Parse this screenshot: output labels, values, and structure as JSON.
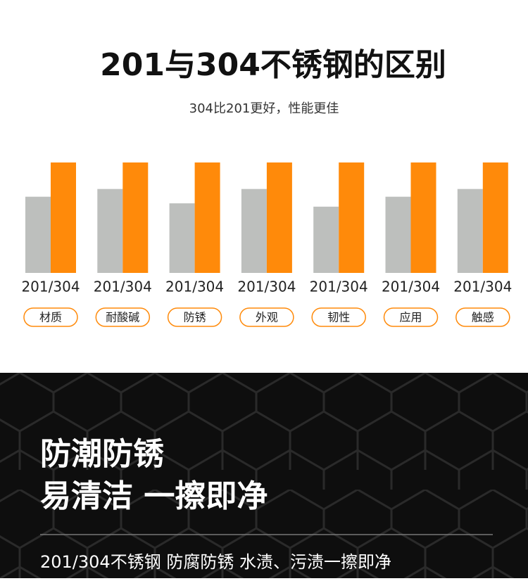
{
  "chart_data": {
    "type": "bar",
    "title": "201与304不锈钢的区别",
    "subtitle": "304比201更好，性能更佳",
    "categories": [
      "材质",
      "耐酸碱",
      "防锈",
      "外观",
      "韧性",
      "应用",
      "触感"
    ],
    "group_labels": [
      "201/304",
      "201/304",
      "201/304",
      "201/304",
      "201/304",
      "201/304",
      "201/304"
    ],
    "series": [
      {
        "color": "#bdbfbd",
        "values": [
          69,
          76,
          63,
          76,
          60,
          69,
          76
        ]
      },
      {
        "color": "#ff8a0a",
        "values": [
          100,
          100,
          100,
          100,
          100,
          100,
          100
        ]
      }
    ],
    "ylim": [
      0,
      100
    ]
  },
  "banner": {
    "headline": [
      "防潮防锈",
      "易清洁 一擦即净"
    ],
    "caption": "201/304不锈钢 防腐防锈 水渍、污渍一擦即净"
  }
}
